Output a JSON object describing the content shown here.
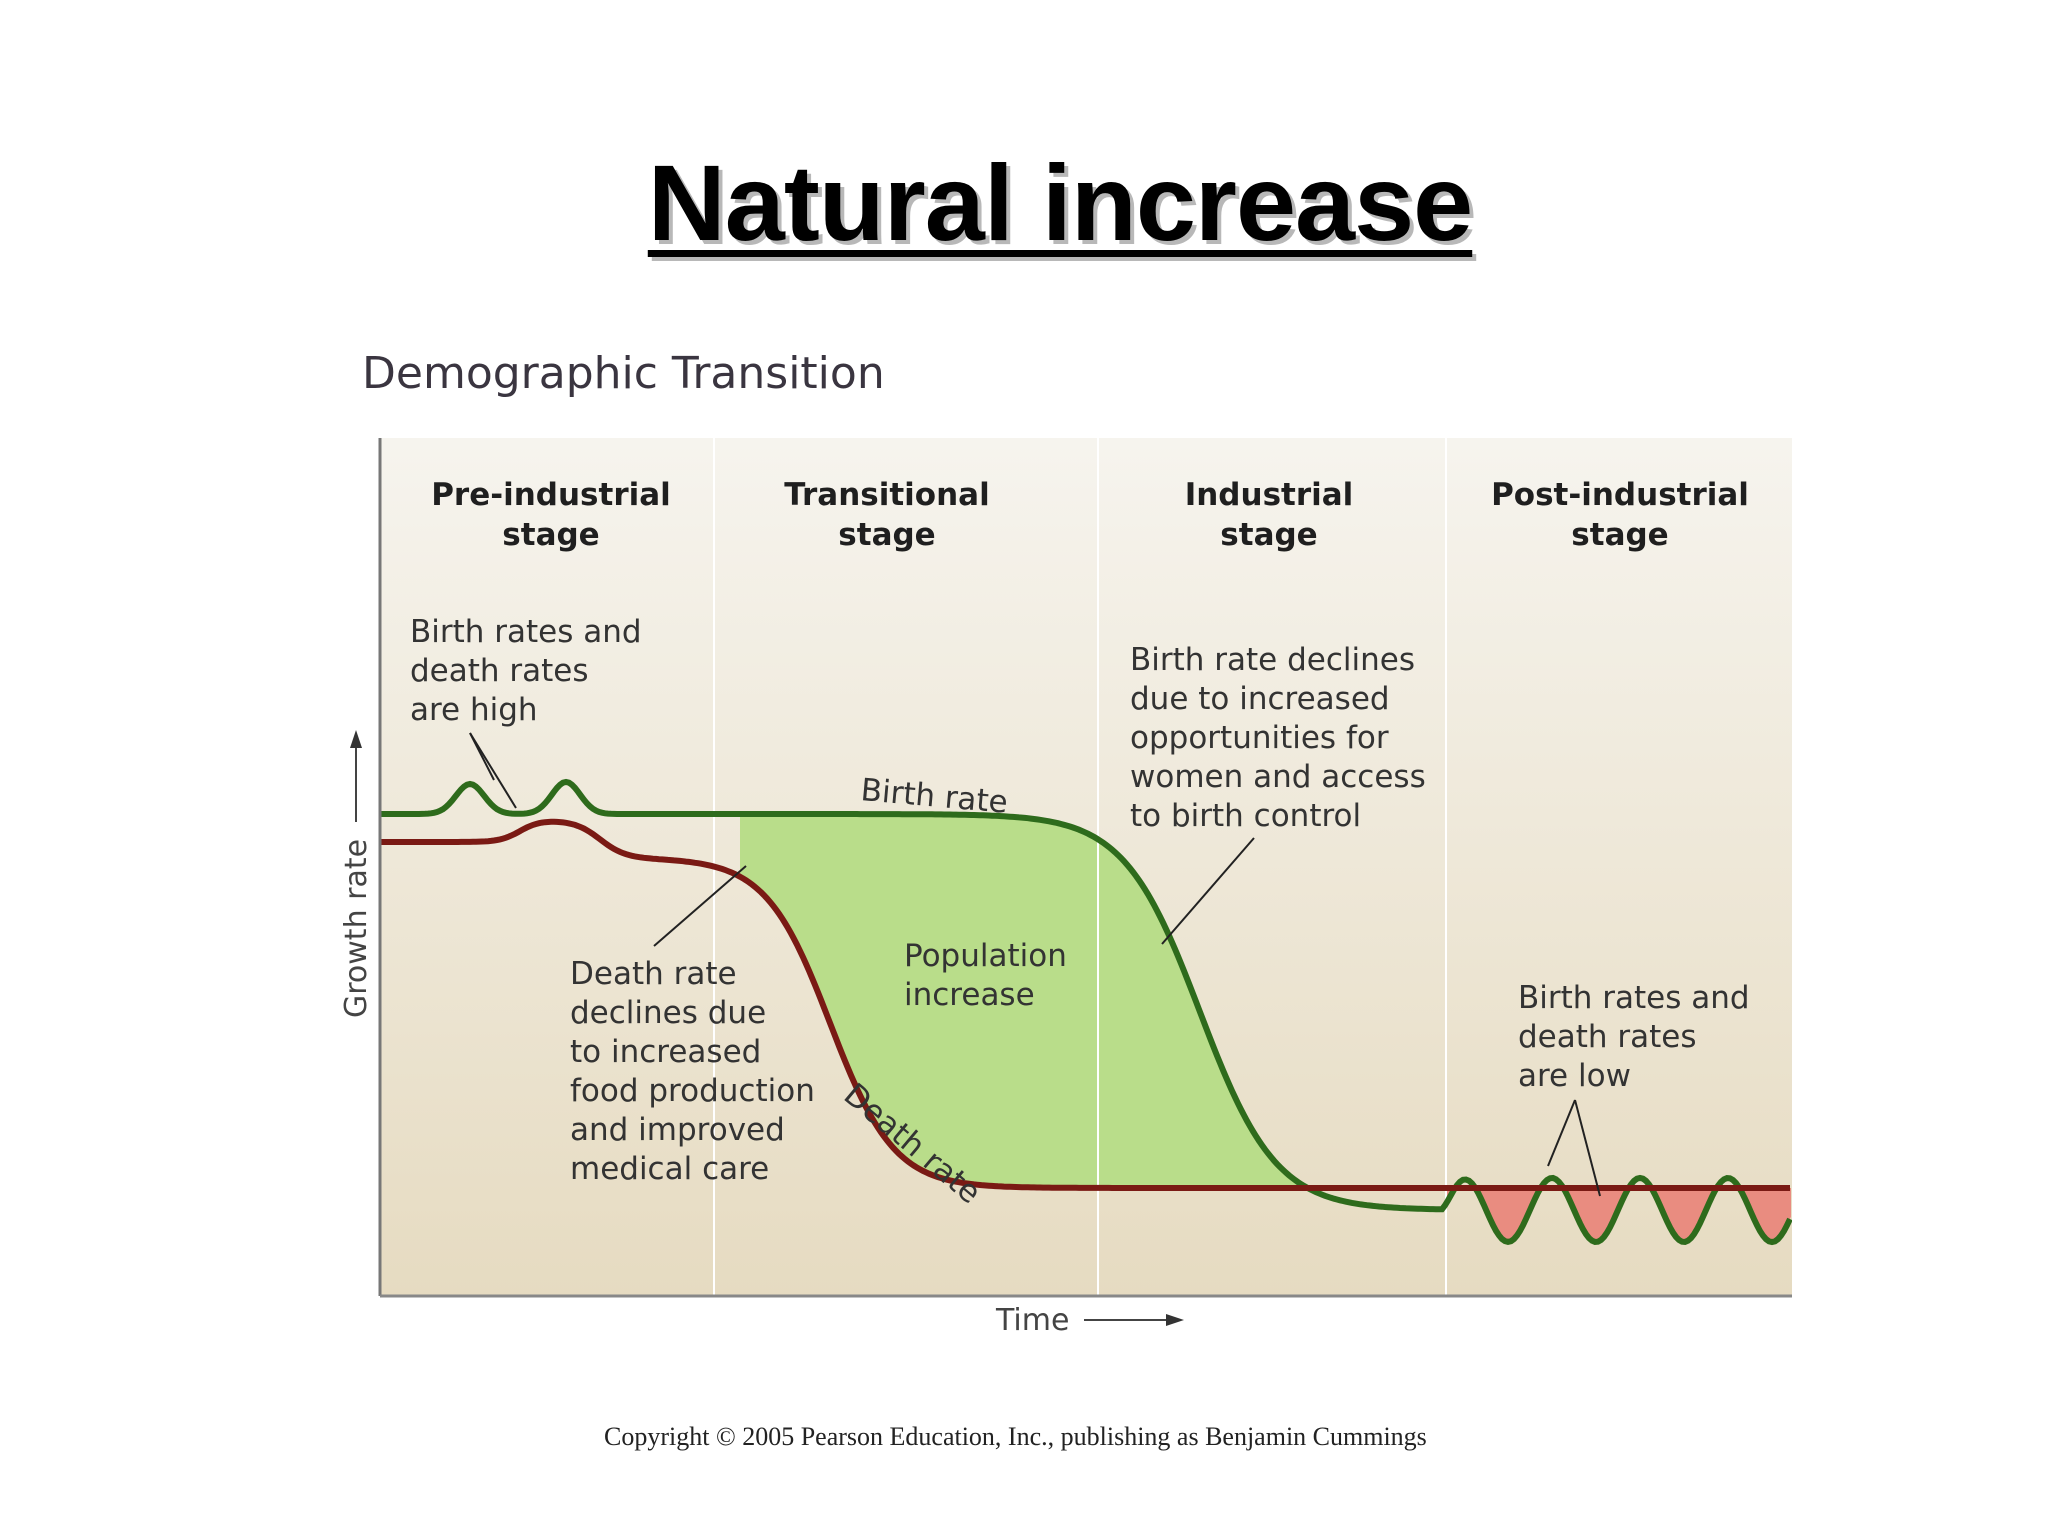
{
  "slide": {
    "title": "Natural increase"
  },
  "figure": {
    "title": "Demographic Transition",
    "copyright": "Copyright © 2005 Pearson Education, Inc., publishing as Benjamin Cummings"
  },
  "chart_data": {
    "type": "line",
    "title": "Demographic Transition",
    "xlabel": "Time",
    "ylabel": "Growth rate",
    "stages": [
      {
        "line1": "Pre-industrial",
        "line2": "stage"
      },
      {
        "line1": "Transitional",
        "line2": "stage"
      },
      {
        "line1": "Industrial",
        "line2": "stage"
      },
      {
        "line1": "Post-industrial",
        "line2": "stage"
      }
    ],
    "series": [
      {
        "name": "Birth rate",
        "label": "Birth rate",
        "color": "#2e6b1c"
      },
      {
        "name": "Death rate",
        "label": "Death rate",
        "color": "#7a1a14"
      }
    ],
    "shaded_region": {
      "label_line1": "Population",
      "label_line2": "increase",
      "color": "#b9dd8a"
    },
    "annotations": {
      "high_rates": [
        "Birth rates and",
        "death rates",
        "are high"
      ],
      "death_decline": [
        "Death rate",
        "declines due",
        "to increased",
        "food production",
        "and improved",
        "medical care"
      ],
      "birth_decline": [
        "Birth rate declines",
        "due to increased",
        "opportunities for",
        "women and access",
        "to birth control"
      ],
      "low_rates": [
        "Birth rates and",
        "death rates",
        "are low"
      ]
    },
    "colors": {
      "background_top": "#f5f3ec",
      "background_bottom": "#e7dcc2",
      "low_fill": "#e98c80"
    }
  }
}
